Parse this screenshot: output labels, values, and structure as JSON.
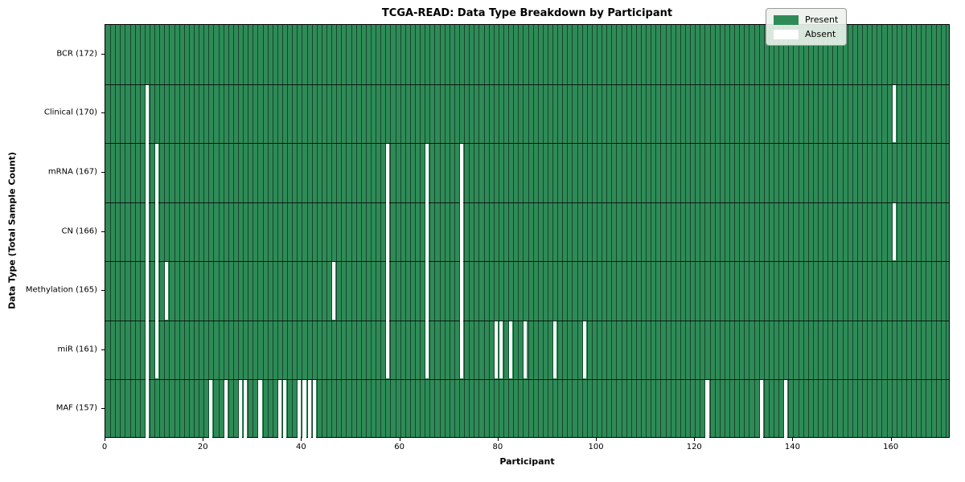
{
  "title": "TCGA-READ: Data Type Breakdown by Participant",
  "legend": {
    "present_label": "Present",
    "absent_label": "Absent"
  },
  "colors": {
    "present": "#2e8b57",
    "absent": "#ffffff",
    "gridline": "rgba(0,0,0,0.5)",
    "row_separator": "rgba(0,0,0,0.8)",
    "legend_present_swatch": "#2e8b57",
    "legend_absent_swatch": "#ffffff"
  },
  "chart_data": {
    "type": "heatmap",
    "title": "TCGA-READ: Data Type Breakdown by Participant",
    "xlabel": "Participant",
    "ylabel": "Data Type (Total Sample Count)",
    "x_range": [
      0,
      172
    ],
    "x_ticks": [
      0,
      20,
      40,
      60,
      80,
      100,
      120,
      140,
      160
    ],
    "n_participants": 172,
    "legend": [
      "Present",
      "Absent"
    ],
    "legend_position": "upper right",
    "rows": [
      {
        "label": "BCR (172)",
        "name": "BCR",
        "total": 172,
        "absent_participants": []
      },
      {
        "label": "Clinical (170)",
        "name": "Clinical",
        "total": 170,
        "absent_participants": [
          8,
          160
        ]
      },
      {
        "label": "mRNA (167)",
        "name": "mRNA",
        "total": 167,
        "absent_participants": [
          8,
          10,
          57,
          65,
          72
        ]
      },
      {
        "label": "CN (166)",
        "name": "CN",
        "total": 166,
        "absent_participants": [
          8,
          10,
          57,
          65,
          72,
          160
        ]
      },
      {
        "label": "Methylation (165)",
        "name": "Methylation",
        "total": 165,
        "absent_participants": [
          8,
          10,
          12,
          46,
          57,
          65,
          72
        ]
      },
      {
        "label": "miR (161)",
        "name": "miR",
        "total": 161,
        "absent_participants": [
          8,
          10,
          57,
          65,
          72,
          79,
          80,
          82,
          85,
          91,
          97
        ]
      },
      {
        "label": "MAF (157)",
        "name": "MAF",
        "total": 157,
        "absent_participants": [
          8,
          21,
          24,
          27,
          28,
          31,
          35,
          36,
          39,
          40,
          41,
          42,
          122,
          133,
          138
        ]
      }
    ]
  }
}
